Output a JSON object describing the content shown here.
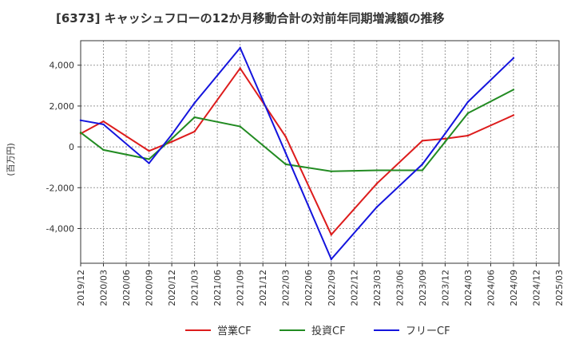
{
  "chart_data": {
    "type": "line",
    "title": "[6373]  キャッシュフローの12か月移動合計の対前年同期増減額の推移",
    "ylabel": "(百万円)",
    "xlabel": "",
    "ylim": [
      -5700,
      5200
    ],
    "yticks": [
      -4000,
      -2000,
      0,
      2000,
      4000
    ],
    "ytick_labels": [
      "-4,000",
      "-2,000",
      "0",
      "2,000",
      "4,000"
    ],
    "categories": [
      "2019/12",
      "2020/03",
      "2020/06",
      "2020/09",
      "2020/12",
      "2021/03",
      "2021/06",
      "2021/09",
      "2021/12",
      "2022/03",
      "2022/06",
      "2022/09",
      "2022/12",
      "2023/03",
      "2023/06",
      "2023/09",
      "2023/12",
      "2024/03",
      "2024/06",
      "2024/09",
      "2024/12",
      "2025/03"
    ],
    "grid": true,
    "legend_position": "bottom",
    "series": [
      {
        "name": "営業CF",
        "color": "#dd1c1c",
        "values": [
          650,
          1250,
          null,
          -200,
          250,
          750,
          null,
          3850,
          null,
          500,
          null,
          -4300,
          null,
          -1800,
          null,
          300,
          400,
          550,
          null,
          1550,
          null,
          null
        ]
      },
      {
        "name": "投資CF",
        "color": "#228b22",
        "values": [
          700,
          -150,
          null,
          -600,
          400,
          1450,
          null,
          1000,
          null,
          -850,
          null,
          -1200,
          null,
          -1150,
          null,
          -1150,
          250,
          1650,
          null,
          2800,
          null,
          null
        ]
      },
      {
        "name": "フリーCF",
        "color": "#1414dd",
        "values": [
          1300,
          1100,
          null,
          -800,
          600,
          2150,
          null,
          4850,
          null,
          -300,
          null,
          -5500,
          null,
          -2950,
          null,
          -850,
          650,
          2200,
          null,
          4350,
          null,
          null
        ]
      }
    ]
  }
}
